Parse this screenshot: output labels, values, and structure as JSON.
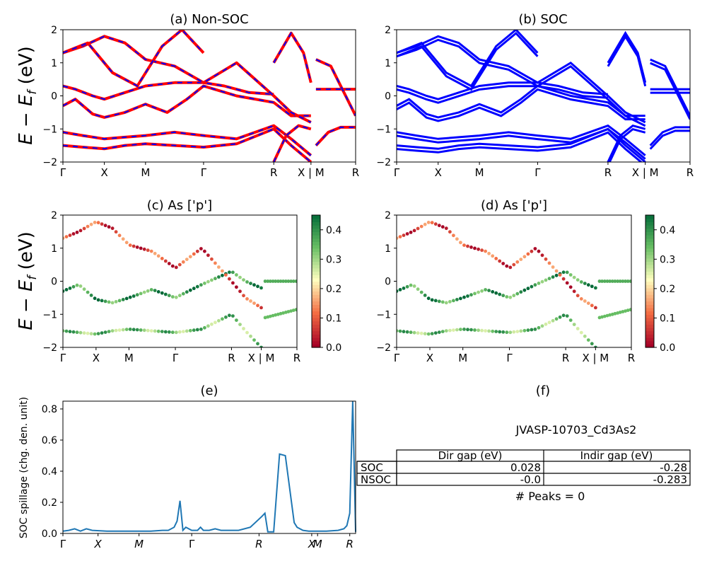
{
  "panels": {
    "a": {
      "title": "(a) Non-SOC"
    },
    "b": {
      "title": "(b) SOC"
    },
    "c": {
      "title": "(c)  As ['p']"
    },
    "d": {
      "title": "(d) As ['p']"
    },
    "e": {
      "title": "(e)"
    },
    "f": {
      "title": "(f)"
    }
  },
  "band_axes": {
    "ylabel": "E − E_f (eV)",
    "ylim": [
      -2,
      2
    ],
    "yticks": [
      "2",
      "1",
      "0",
      "−1",
      "−2"
    ],
    "kpath": [
      "Γ",
      "X",
      "M",
      "Γ",
      "R",
      "X | M",
      "R"
    ],
    "kpos": [
      0,
      0.167,
      0.333,
      0.567,
      0.85,
      1.0,
      1.18
    ]
  },
  "colorbar": {
    "ticks": [
      "0.0",
      "0.1",
      "0.2",
      "0.3",
      "0.4"
    ],
    "range": [
      0,
      0.45
    ],
    "colormap": "RdYlGn"
  },
  "colors": {
    "nonsoc_line": "#ff0000",
    "nonsoc_dash": "#0000ff",
    "soc_line": "#0000ff",
    "spillage_line": "#1f77b4"
  },
  "table": {
    "material": "JVASP-10703_Cd3As2",
    "columns": [
      "Dir gap (eV)",
      "Indir gap (eV)"
    ],
    "rows": [
      {
        "label": "SOC",
        "dir": "0.028",
        "indir": "-0.28"
      },
      {
        "label": "NSOC",
        "dir": "-0.0",
        "indir": "-0.283"
      }
    ],
    "peaks": "# Peaks = 0"
  },
  "chart_data": [
    {
      "type": "line",
      "panel": "a",
      "title": "(a) Non-SOC",
      "ylabel": "E − E_f (eV)",
      "ylim": [
        -2,
        2
      ],
      "xticks": [
        "Γ",
        "X",
        "M",
        "Γ",
        "R",
        "X | M",
        "R"
      ],
      "bands": [
        {
          "x": [
            0,
            0.08,
            0.167,
            0.25,
            0.333,
            0.45,
            0.567,
            0.7,
            0.85,
            0.92,
            1.0
          ],
          "y": [
            -1.1,
            -1.2,
            -1.3,
            -1.25,
            -1.2,
            -1.1,
            -1.2,
            -1.3,
            -0.9,
            -1.3,
            -1.8
          ]
        },
        {
          "x": [
            0,
            0.08,
            0.167,
            0.25,
            0.333,
            0.45,
            0.567,
            0.7,
            0.85,
            0.92,
            1.0
          ],
          "y": [
            -1.5,
            -1.55,
            -1.6,
            -1.5,
            -1.45,
            -1.5,
            -1.55,
            -1.45,
            -1.0,
            -1.5,
            -2.0
          ]
        },
        {
          "x": [
            0,
            0.05,
            0.12,
            0.167,
            0.25,
            0.333,
            0.42,
            0.5,
            0.567,
            0.7,
            0.85,
            0.92,
            1.0
          ],
          "y": [
            -0.3,
            -0.1,
            -0.55,
            -0.65,
            -0.5,
            -0.25,
            -0.5,
            -0.1,
            0.3,
            0.0,
            -0.2,
            -0.6,
            -0.6
          ]
        },
        {
          "x": [
            0,
            0.05,
            0.12,
            0.167,
            0.25,
            0.333,
            0.45,
            0.567,
            0.65,
            0.75,
            0.85
          ],
          "y": [
            0.3,
            0.2,
            0.0,
            -0.1,
            0.1,
            0.3,
            0.4,
            0.4,
            0.3,
            0.1,
            0.05
          ]
        },
        {
          "x": [
            0,
            0.08,
            0.167,
            0.25,
            0.333,
            0.45,
            0.567,
            0.7,
            0.85,
            0.92,
            1.0
          ],
          "y": [
            1.3,
            1.5,
            1.8,
            1.6,
            1.1,
            0.9,
            0.4,
            1.0,
            0.0,
            -0.5,
            -0.8
          ]
        },
        {
          "x": [
            0,
            0.1,
            0.2,
            0.3,
            0.4,
            0.48,
            0.567
          ],
          "y": [
            1.3,
            1.6,
            0.7,
            0.3,
            1.5,
            2.0,
            1.3
          ]
        },
        {
          "x": [
            0.85,
            0.9,
            0.95,
            1.0
          ],
          "y": [
            -2.0,
            -1.2,
            -0.9,
            -1.0
          ]
        },
        {
          "x": [
            0.85,
            0.92,
            0.97,
            1.0
          ],
          "y": [
            1.0,
            1.9,
            1.3,
            0.4
          ]
        },
        {
          "x": [
            1.02,
            1.07,
            1.12,
            1.18
          ],
          "y": [
            -1.5,
            -1.1,
            -0.95,
            -0.95
          ]
        },
        {
          "x": [
            1.02,
            1.1,
            1.18
          ],
          "y": [
            0.2,
            0.2,
            0.2
          ]
        },
        {
          "x": [
            1.02,
            1.08,
            1.12,
            1.18
          ],
          "y": [
            1.1,
            0.9,
            0.3,
            -0.6
          ]
        }
      ]
    },
    {
      "type": "line",
      "panel": "b",
      "title": "(b) SOC",
      "ylabel": "",
      "ylim": [
        -2,
        2
      ],
      "xticks": [
        "Γ",
        "X",
        "M",
        "Γ",
        "R",
        "X | M",
        "R"
      ],
      "bands": [
        {
          "x": [
            0,
            0.08,
            0.167,
            0.25,
            0.333,
            0.45,
            0.567,
            0.7,
            0.85,
            0.92,
            1.0
          ],
          "y": [
            -1.1,
            -1.2,
            -1.3,
            -1.25,
            -1.2,
            -1.1,
            -1.2,
            -1.3,
            -0.9,
            -1.3,
            -1.8
          ]
        },
        {
          "x": [
            0,
            0.08,
            0.167,
            0.25,
            0.333,
            0.45,
            0.567,
            0.7,
            0.85,
            0.92,
            1.0
          ],
          "y": [
            -1.5,
            -1.55,
            -1.6,
            -1.5,
            -1.45,
            -1.5,
            -1.55,
            -1.45,
            -1.0,
            -1.5,
            -2.0
          ]
        },
        {
          "x": [
            0,
            0.05,
            0.12,
            0.167,
            0.25,
            0.333,
            0.42,
            0.5,
            0.567,
            0.7,
            0.85,
            0.92,
            1.0
          ],
          "y": [
            -0.3,
            -0.1,
            -0.55,
            -0.65,
            -0.5,
            -0.25,
            -0.5,
            -0.1,
            0.3,
            0.0,
            -0.2,
            -0.6,
            -0.6
          ]
        },
        {
          "x": [
            0,
            0.05,
            0.12,
            0.167,
            0.25,
            0.333,
            0.45,
            0.567,
            0.65,
            0.75,
            0.85
          ],
          "y": [
            0.3,
            0.2,
            0.0,
            -0.1,
            0.1,
            0.3,
            0.4,
            0.4,
            0.3,
            0.1,
            0.05
          ]
        },
        {
          "x": [
            0,
            0.08,
            0.167,
            0.25,
            0.333,
            0.45,
            0.567,
            0.7,
            0.85,
            0.92,
            1.0
          ],
          "y": [
            1.3,
            1.5,
            1.8,
            1.6,
            1.1,
            0.9,
            0.4,
            1.0,
            0.0,
            -0.5,
            -0.8
          ]
        },
        {
          "x": [
            0,
            0.1,
            0.2,
            0.3,
            0.4,
            0.48,
            0.567
          ],
          "y": [
            1.3,
            1.6,
            0.7,
            0.3,
            1.5,
            2.0,
            1.3
          ]
        },
        {
          "x": [
            0.85,
            0.9,
            0.95,
            1.0
          ],
          "y": [
            -2.0,
            -1.2,
            -0.9,
            -1.0
          ]
        },
        {
          "x": [
            0.85,
            0.92,
            0.97,
            1.0
          ],
          "y": [
            1.0,
            1.9,
            1.3,
            0.4
          ]
        },
        {
          "x": [
            1.02,
            1.07,
            1.12,
            1.18
          ],
          "y": [
            -1.5,
            -1.1,
            -0.95,
            -0.95
          ]
        },
        {
          "x": [
            1.02,
            1.1,
            1.18
          ],
          "y": [
            0.2,
            0.2,
            0.2
          ]
        },
        {
          "x": [
            1.02,
            1.08,
            1.12,
            1.18
          ],
          "y": [
            1.1,
            0.9,
            0.3,
            -0.6
          ]
        }
      ]
    },
    {
      "type": "scatter",
      "panel": "c",
      "title": "(c)  As ['p']",
      "ylabel": "E − E_f (eV)",
      "ylim": [
        -2,
        2
      ],
      "xticks": [
        "Γ",
        "X",
        "M",
        "Γ",
        "R",
        "X | M",
        "R"
      ],
      "colorbar": {
        "range": [
          0,
          0.45
        ],
        "ticks": [
          "0.0",
          "0.1",
          "0.2",
          "0.3",
          "0.4"
        ]
      },
      "series": [
        {
          "name": "valence",
          "weight": 0.33,
          "y_at_path": [
            -1.5,
            -1.55,
            -1.6,
            -1.5,
            -1.45,
            -1.5,
            -1.55,
            -1.45,
            -1.0,
            -1.5,
            -2.0
          ]
        },
        {
          "name": "mid",
          "weight": 0.38,
          "y_at_path": [
            -0.3,
            -0.1,
            -0.55,
            -0.65,
            -0.5,
            -0.25,
            -0.5,
            -0.1,
            0.3,
            0.0,
            -0.2
          ]
        },
        {
          "name": "conduction",
          "weight": 0.08,
          "y_at_path": [
            1.3,
            1.5,
            1.8,
            1.6,
            1.1,
            0.9,
            0.4,
            1.0,
            0.0,
            -0.5,
            -0.8
          ]
        }
      ]
    },
    {
      "type": "scatter",
      "panel": "d",
      "title": "(d) As ['p']",
      "ylabel": "",
      "ylim": [
        -2,
        2
      ],
      "xticks": [
        "Γ",
        "X",
        "M",
        "Γ",
        "R",
        "X | M",
        "R"
      ],
      "colorbar": {
        "range": [
          0,
          0.45
        ],
        "ticks": [
          "0.0",
          "0.1",
          "0.2",
          "0.3",
          "0.4"
        ]
      },
      "series": [
        {
          "name": "valence",
          "weight": 0.33,
          "y_at_path": [
            -1.5,
            -1.55,
            -1.6,
            -1.5,
            -1.45,
            -1.5,
            -1.55,
            -1.45,
            -1.0,
            -1.5,
            -2.0
          ]
        },
        {
          "name": "mid",
          "weight": 0.38,
          "y_at_path": [
            -0.3,
            -0.1,
            -0.55,
            -0.65,
            -0.5,
            -0.25,
            -0.5,
            -0.1,
            0.3,
            0.0,
            -0.2
          ]
        },
        {
          "name": "conduction",
          "weight": 0.08,
          "y_at_path": [
            1.3,
            1.5,
            1.8,
            1.6,
            1.1,
            0.9,
            0.4,
            1.0,
            0.0,
            -0.5,
            -0.8
          ]
        }
      ]
    },
    {
      "type": "line",
      "panel": "e",
      "title": "(e)",
      "ylabel": "SOC spillage (chg. den. unit)",
      "ylim": [
        0,
        0.85
      ],
      "yticks": [
        "0.0",
        "0.2",
        "0.4",
        "0.6",
        "0.8"
      ],
      "xticks": [
        "Γ",
        "X",
        "M",
        "Γ",
        "R",
        "X",
        "M",
        "R"
      ],
      "x": [
        0,
        0.02,
        0.04,
        0.06,
        0.08,
        0.1,
        0.15,
        0.2,
        0.25,
        0.3,
        0.34,
        0.36,
        0.38,
        0.39,
        0.4,
        0.41,
        0.42,
        0.44,
        0.46,
        0.47,
        0.48,
        0.5,
        0.52,
        0.54,
        0.56,
        0.6,
        0.64,
        0.68,
        0.69,
        0.7,
        0.71,
        0.72,
        0.74,
        0.76,
        0.79,
        0.8,
        0.82,
        0.84,
        0.86,
        0.9,
        0.94,
        0.96,
        0.97,
        0.98,
        0.99,
        1.0
      ],
      "y": [
        0.015,
        0.02,
        0.03,
        0.015,
        0.03,
        0.02,
        0.015,
        0.015,
        0.015,
        0.015,
        0.02,
        0.02,
        0.04,
        0.08,
        0.21,
        0.02,
        0.04,
        0.02,
        0.02,
        0.04,
        0.02,
        0.02,
        0.03,
        0.02,
        0.02,
        0.02,
        0.04,
        0.11,
        0.13,
        0.01,
        0.01,
        0.01,
        0.51,
        0.5,
        0.07,
        0.04,
        0.02,
        0.015,
        0.015,
        0.015,
        0.02,
        0.03,
        0.05,
        0.13,
        0.85,
        0.01
      ]
    }
  ]
}
